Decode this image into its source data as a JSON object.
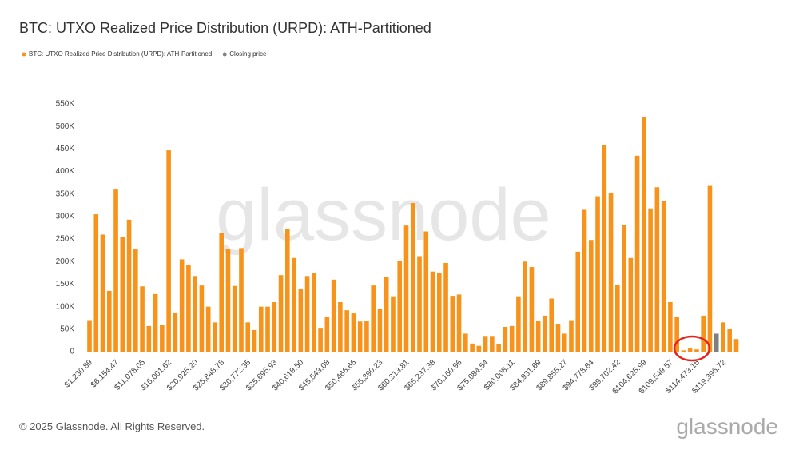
{
  "chart_data": {
    "type": "bar",
    "title": "BTC: UTXO Realized Price Distribution (URPD): ATH-Partitioned",
    "watermark": "glassnode",
    "footer": "© 2025 Glassnode. All Rights Reserved.",
    "logo": "glassnode",
    "categories": [
      "$1,230.89",
      null,
      null,
      null,
      "$6,154.47",
      null,
      null,
      null,
      "$11,078.05",
      null,
      null,
      null,
      "$16,001.62",
      null,
      null,
      null,
      "$20,925.20",
      null,
      null,
      null,
      "$25,848.78",
      null,
      null,
      null,
      "$30,772.35",
      null,
      null,
      null,
      "$35,695.93",
      null,
      null,
      null,
      "$40,619.50",
      null,
      null,
      null,
      "$45,543.08",
      null,
      null,
      null,
      "$50,466.66",
      null,
      null,
      null,
      "$55,390.23",
      null,
      null,
      null,
      "$60,313.81",
      null,
      null,
      null,
      "$65,237.38",
      null,
      null,
      null,
      "$70,160.96",
      null,
      null,
      null,
      "$75,084.54",
      null,
      null,
      null,
      "$80,008.11",
      null,
      null,
      null,
      "$84,931.69",
      null,
      null,
      null,
      "$89,855.27",
      null,
      null,
      null,
      "$94,778.84",
      null,
      null,
      null,
      "$99,702.42",
      null,
      null,
      null,
      "$104,625.99",
      null,
      null,
      null,
      "$109,549.57",
      null,
      null,
      null,
      "$114,473.15",
      null,
      null,
      null,
      "$119,396.72",
      null,
      null
    ],
    "series": [
      {
        "name": "BTC: UTXO Realized Price Distribution (URPD): ATH-Partitioned",
        "color": "#f7931a",
        "values": [
          70000,
          305000,
          260000,
          135000,
          360000,
          255000,
          293000,
          227000,
          145000,
          57000,
          128000,
          60000,
          447000,
          87000,
          205000,
          193000,
          168000,
          147000,
          100000,
          65000,
          263000,
          228000,
          146000,
          230000,
          65000,
          48000,
          100000,
          100000,
          110000,
          170000,
          272000,
          208000,
          140000,
          168000,
          175000,
          53000,
          77000,
          160000,
          110000,
          92000,
          85000,
          67000,
          68000,
          147000,
          95000,
          165000,
          123000,
          202000,
          280000,
          330000,
          212000,
          267000,
          178000,
          174000,
          197000,
          124000,
          127000,
          40000,
          18000,
          13000,
          35000,
          35000,
          17000,
          55000,
          57000,
          123000,
          200000,
          188000,
          68000,
          80000,
          118000,
          62000,
          40000,
          70000,
          222000,
          315000,
          248000,
          345000,
          458000,
          352000,
          148000,
          282000,
          208000,
          435000,
          520000,
          318000,
          365000,
          335000,
          110000,
          78000,
          3000,
          7000,
          5000,
          80000,
          368000,
          null,
          65000,
          50000,
          28000
        ]
      },
      {
        "name": "Closing price",
        "color": "#7f7f7f",
        "values": [
          null,
          null,
          null,
          null,
          null,
          null,
          null,
          null,
          null,
          null,
          null,
          null,
          null,
          null,
          null,
          null,
          null,
          null,
          null,
          null,
          null,
          null,
          null,
          null,
          null,
          null,
          null,
          null,
          null,
          null,
          null,
          null,
          null,
          null,
          null,
          null,
          null,
          null,
          null,
          null,
          null,
          null,
          null,
          null,
          null,
          null,
          null,
          null,
          null,
          null,
          null,
          null,
          null,
          null,
          null,
          null,
          null,
          null,
          null,
          null,
          null,
          null,
          null,
          null,
          null,
          null,
          null,
          null,
          null,
          null,
          null,
          null,
          null,
          null,
          null,
          null,
          null,
          null,
          null,
          null,
          null,
          null,
          null,
          null,
          null,
          null,
          null,
          null,
          null,
          null,
          null,
          null,
          null,
          null,
          null,
          40000,
          null,
          null,
          null
        ]
      }
    ],
    "ylim": [
      0,
      550000
    ],
    "yticks": [
      0,
      {
        "value": 50000,
        "label": "50K"
      },
      {
        "value": 100000,
        "label": "100K"
      },
      {
        "value": 150000,
        "label": "150K"
      },
      {
        "value": 200000,
        "label": "200K"
      },
      {
        "value": 250000,
        "label": "250K"
      },
      {
        "value": 300000,
        "label": "300K"
      },
      {
        "value": 350000,
        "label": "350K"
      },
      {
        "value": 400000,
        "label": "400K"
      },
      {
        "value": 450000,
        "label": "450K"
      },
      {
        "value": 500000,
        "label": "500K"
      },
      {
        "value": 550000,
        "label": "550K"
      }
    ]
  }
}
